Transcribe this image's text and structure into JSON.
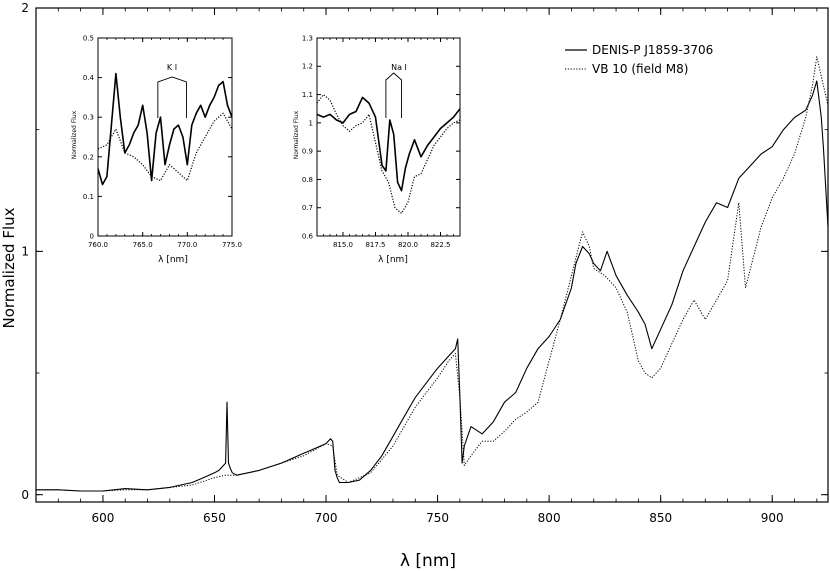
{
  "chart_data": [
    {
      "type": "line",
      "name": "main",
      "xlabel": "λ [nm]",
      "ylabel": "Normalized Flux",
      "xlim": [
        570,
        925
      ],
      "ylim": [
        -0.03,
        2.0
      ],
      "xticks": [
        600,
        650,
        700,
        750,
        800,
        850,
        900
      ],
      "yticks": [
        0,
        1,
        2
      ],
      "legend_position": "top-right",
      "series": [
        {
          "name": "DENIS-P J1859-3706",
          "style": "solid",
          "x": [
            570,
            580,
            590,
            600,
            610,
            620,
            630,
            640,
            645,
            650,
            652,
            654,
            655,
            655.6,
            656.3,
            657,
            658,
            660,
            670,
            680,
            690,
            695,
            700,
            702,
            703,
            704,
            705,
            706,
            710,
            715,
            720,
            725,
            730,
            735,
            740,
            745,
            750,
            755,
            758,
            759,
            760,
            761,
            762,
            765,
            770,
            775,
            780,
            785,
            790,
            795,
            800,
            805,
            810,
            812,
            815,
            818,
            820,
            823,
            826,
            830,
            835,
            840,
            843,
            846,
            850,
            855,
            860,
            865,
            870,
            875,
            880,
            885,
            890,
            895,
            900,
            905,
            910,
            915,
            918,
            920,
            922,
            923,
            925
          ],
          "y": [
            0.02,
            0.02,
            0.015,
            0.015,
            0.025,
            0.02,
            0.03,
            0.05,
            0.07,
            0.09,
            0.1,
            0.12,
            0.13,
            0.38,
            0.13,
            0.11,
            0.09,
            0.08,
            0.1,
            0.13,
            0.17,
            0.19,
            0.21,
            0.23,
            0.22,
            0.1,
            0.07,
            0.05,
            0.05,
            0.06,
            0.1,
            0.16,
            0.24,
            0.32,
            0.4,
            0.46,
            0.52,
            0.57,
            0.6,
            0.64,
            0.4,
            0.13,
            0.2,
            0.28,
            0.25,
            0.3,
            0.38,
            0.42,
            0.52,
            0.6,
            0.65,
            0.72,
            0.85,
            0.95,
            1.02,
            0.99,
            0.95,
            0.92,
            1.0,
            0.9,
            0.82,
            0.75,
            0.7,
            0.6,
            0.68,
            0.78,
            0.92,
            1.02,
            1.12,
            1.2,
            1.18,
            1.3,
            1.35,
            1.4,
            1.43,
            1.5,
            1.55,
            1.58,
            1.64,
            1.7,
            1.55,
            1.42,
            1.1
          ]
        },
        {
          "name": "VB 10 (field M8)",
          "style": "dotted",
          "x": [
            570,
            580,
            590,
            600,
            610,
            620,
            630,
            640,
            650,
            655,
            660,
            670,
            680,
            690,
            700,
            703,
            705,
            710,
            720,
            730,
            740,
            750,
            755,
            758,
            760,
            762,
            765,
            770,
            775,
            780,
            785,
            790,
            795,
            800,
            805,
            810,
            815,
            818,
            820,
            825,
            830,
            835,
            840,
            843,
            846,
            850,
            855,
            860,
            865,
            870,
            875,
            880,
            885,
            888,
            890,
            895,
            900,
            905,
            910,
            915,
            918,
            920,
            925
          ],
          "y": [
            0.02,
            0.02,
            0.015,
            0.015,
            0.02,
            0.02,
            0.03,
            0.04,
            0.07,
            0.08,
            0.08,
            0.1,
            0.13,
            0.16,
            0.21,
            0.2,
            0.08,
            0.05,
            0.09,
            0.2,
            0.36,
            0.48,
            0.55,
            0.58,
            0.4,
            0.12,
            0.16,
            0.22,
            0.22,
            0.26,
            0.31,
            0.34,
            0.38,
            0.55,
            0.72,
            0.9,
            1.08,
            1.02,
            0.93,
            0.9,
            0.85,
            0.75,
            0.55,
            0.5,
            0.48,
            0.52,
            0.62,
            0.72,
            0.8,
            0.72,
            0.8,
            0.88,
            1.2,
            0.85,
            0.92,
            1.1,
            1.22,
            1.3,
            1.4,
            1.55,
            1.68,
            1.8,
            1.6
          ]
        }
      ]
    },
    {
      "type": "line",
      "name": "inset-ki",
      "annotation": "K I",
      "xlabel": "λ [nm]",
      "ylabel": "Normalized Flux",
      "xlim": [
        760,
        775
      ],
      "ylim": [
        0,
        0.5
      ],
      "xticks": [
        760,
        765,
        770,
        775
      ],
      "xtick_labels": [
        "760.0",
        "765.0",
        "770.0",
        "775.0"
      ],
      "yticks": [
        0,
        0.1,
        0.2,
        0.3,
        0.4,
        0.5
      ],
      "ytick_labels": [
        "0",
        "0.1",
        "0.2",
        "0.3",
        "0.4",
        "0.5"
      ],
      "series": [
        {
          "name": "DENIS-P J1859-3706",
          "style": "solid",
          "x": [
            760,
            760.5,
            761,
            761.5,
            762,
            762.5,
            763,
            763.5,
            764,
            764.5,
            765,
            765.5,
            766,
            766.5,
            767,
            767.5,
            768,
            768.5,
            769,
            769.5,
            770,
            770.5,
            771,
            771.5,
            772,
            772.5,
            773,
            773.5,
            774,
            774.5,
            775
          ],
          "y": [
            0.17,
            0.13,
            0.15,
            0.28,
            0.41,
            0.3,
            0.21,
            0.23,
            0.26,
            0.28,
            0.33,
            0.26,
            0.14,
            0.26,
            0.3,
            0.18,
            0.23,
            0.27,
            0.28,
            0.25,
            0.18,
            0.28,
            0.31,
            0.33,
            0.3,
            0.33,
            0.35,
            0.38,
            0.39,
            0.33,
            0.3
          ],
          "annotation_positions": [
            766.7,
            769.9
          ]
        },
        {
          "name": "VB 10 (field M8)",
          "style": "dotted",
          "x": [
            760,
            761,
            762,
            763,
            764,
            765,
            766,
            767,
            768,
            769,
            770,
            771,
            772,
            773,
            774,
            775
          ],
          "y": [
            0.22,
            0.23,
            0.27,
            0.21,
            0.2,
            0.18,
            0.15,
            0.14,
            0.18,
            0.16,
            0.14,
            0.21,
            0.25,
            0.29,
            0.31,
            0.27
          ]
        }
      ]
    },
    {
      "type": "line",
      "name": "inset-nai",
      "annotation": "Na I",
      "xlabel": "λ [nm]",
      "ylabel": "Normalized Flux",
      "xlim": [
        813,
        824
      ],
      "ylim": [
        0.6,
        1.3
      ],
      "xticks": [
        815,
        817.5,
        820,
        822.5
      ],
      "xtick_labels": [
        "815.0",
        "817.5",
        "820.0",
        "822.5"
      ],
      "yticks": [
        0.6,
        0.7,
        0.8,
        0.9,
        1.0,
        1.1,
        1.2,
        1.3
      ],
      "ytick_labels": [
        "0.6",
        "0.7",
        "0.8",
        "0.9",
        "1",
        "1.1",
        "1.2",
        "1.3"
      ],
      "series": [
        {
          "name": "DENIS-P J1859-3706",
          "style": "solid",
          "x": [
            813,
            813.5,
            814,
            814.5,
            815,
            815.5,
            816,
            816.5,
            817,
            817.5,
            818,
            818.3,
            818.6,
            818.9,
            819.2,
            819.5,
            819.8,
            820.1,
            820.5,
            821,
            821.5,
            822,
            822.5,
            823,
            823.5,
            824
          ],
          "y": [
            1.03,
            1.02,
            1.03,
            1.01,
            1.0,
            1.03,
            1.04,
            1.09,
            1.07,
            1.02,
            0.85,
            0.83,
            1.01,
            0.96,
            0.79,
            0.76,
            0.84,
            0.89,
            0.94,
            0.88,
            0.92,
            0.95,
            0.98,
            1.0,
            1.02,
            1.05
          ],
          "annotation_positions": [
            818.3,
            819.5
          ]
        },
        {
          "name": "VB 10 (field M8)",
          "style": "dotted",
          "x": [
            813,
            813.5,
            814,
            814.5,
            815,
            815.5,
            816,
            816.5,
            817,
            817.5,
            818,
            818.5,
            819,
            819.5,
            820,
            820.5,
            821,
            821.5,
            822,
            822.5,
            823,
            823.5,
            824
          ],
          "y": [
            1.07,
            1.1,
            1.08,
            1.03,
            0.99,
            0.97,
            0.99,
            1.0,
            1.03,
            0.93,
            0.83,
            0.79,
            0.7,
            0.68,
            0.72,
            0.81,
            0.82,
            0.87,
            0.92,
            0.95,
            0.98,
            1.0,
            1.01
          ]
        }
      ]
    }
  ]
}
